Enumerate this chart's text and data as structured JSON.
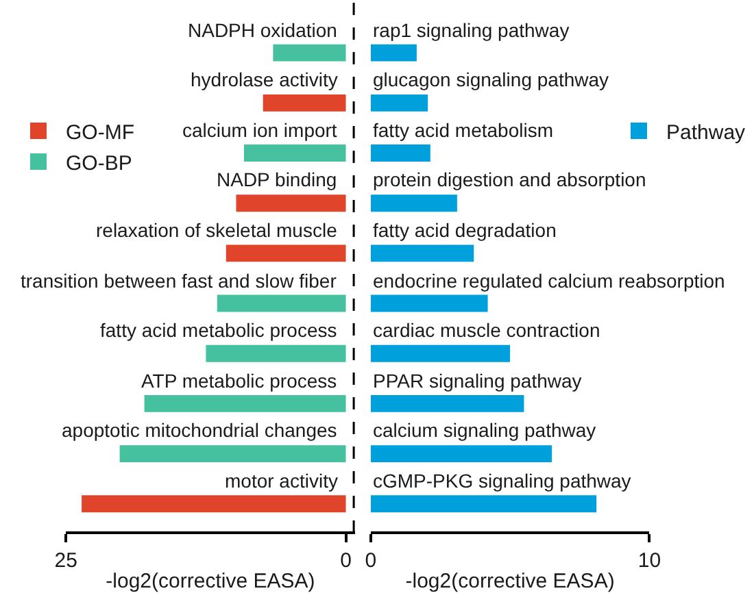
{
  "chart_data": [
    {
      "type": "bar",
      "orientation": "horizontal",
      "xlabel": "-log2(corrective EASA)",
      "categories": [
        "NADPH oxidation",
        "hydrolase activity",
        "calcium ion import",
        "NADP binding",
        "relaxation of skeletal muscle",
        "transition between fast and slow fiber",
        "fatty acid metabolic process",
        "ATP metabolic process",
        "apoptotic mitochondrial changes",
        "motor activity"
      ],
      "series": [
        {
          "name": "GO-MF",
          "color": "#e0452b",
          "values": [
            null,
            7.4,
            null,
            9.8,
            10.7,
            null,
            null,
            null,
            null,
            23.6
          ]
        },
        {
          "name": "GO-BP",
          "color": "#45c1a0",
          "values": [
            6.5,
            null,
            9.1,
            null,
            null,
            11.5,
            12.5,
            18.0,
            20.2,
            null
          ]
        }
      ],
      "xlim": [
        25,
        -0.8
      ],
      "xticks": [
        25,
        0
      ],
      "legend": "left",
      "ref_lines": [
        {
          "axis": "x",
          "value": -0.8,
          "color": "#000000",
          "line_style": "dashed"
        }
      ]
    },
    {
      "type": "bar",
      "orientation": "horizontal",
      "xlabel": "-log2(corrective EASA)",
      "categories": [
        "rap1 signaling pathway",
        "glucagon signaling pathway",
        "fatty acid metabolism",
        "protein digestion and absorption",
        "fatty acid degradation",
        "endocrine regulated calcium reabsorption",
        "cardiac muscle contraction",
        "PPAR signaling pathway",
        "calcium signaling pathway",
        "cGMP-PKG signaling pathway"
      ],
      "series": [
        {
          "name": "Pathway",
          "color": "#00a0dc",
          "values": [
            1.65,
            2.05,
            2.14,
            3.1,
            3.7,
            4.2,
            5.0,
            5.5,
            6.5,
            8.1
          ]
        }
      ],
      "xlim": [
        0,
        10
      ],
      "xticks": [
        0,
        10
      ],
      "legend": "right"
    }
  ]
}
